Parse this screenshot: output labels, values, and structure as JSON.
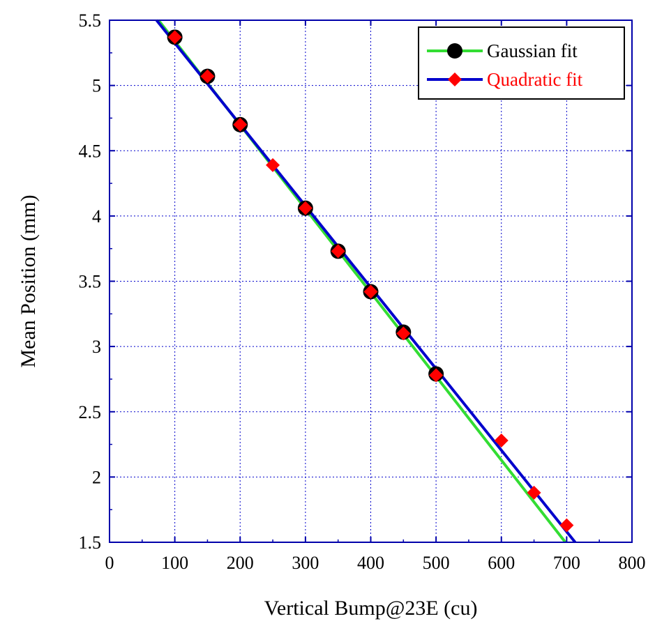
{
  "chart_data": {
    "type": "scatter",
    "title": "",
    "xlabel": "Vertical Bump@23E (cu)",
    "ylabel": "Mean Position (mm)",
    "xlim": [
      0,
      800
    ],
    "ylim": [
      1.5,
      5.5
    ],
    "x_ticks": [
      "0",
      "100",
      "200",
      "300",
      "400",
      "500",
      "600",
      "700",
      "800"
    ],
    "y_ticks": [
      "1.5",
      "2",
      "2.5",
      "3",
      "3.5",
      "4",
      "4.5",
      "5",
      "5.5"
    ],
    "grid": true,
    "legend_position": "top-right",
    "series": [
      {
        "name": "Gaussian fit",
        "color": "#000000",
        "line_color": "#33dd33",
        "marker": "circle",
        "x": [
          100,
          150,
          200,
          300,
          350,
          400,
          450,
          500
        ],
        "y": [
          5.37,
          5.07,
          4.7,
          4.06,
          3.73,
          3.42,
          3.11,
          2.79
        ],
        "fit_line": {
          "x": [
            75,
            698
          ],
          "y": [
            5.5,
            1.5
          ]
        }
      },
      {
        "name": "Quadratic fit",
        "color": "#ff0000",
        "line_color": "#0000cc",
        "marker": "diamond",
        "x": [
          100,
          150,
          200,
          250,
          300,
          350,
          400,
          450,
          500,
          600,
          650,
          700
        ],
        "y": [
          5.37,
          5.07,
          4.7,
          4.39,
          4.06,
          3.73,
          3.42,
          3.1,
          2.78,
          2.28,
          1.88,
          1.63
        ],
        "fit_line": {
          "x": [
            72,
            713
          ],
          "y": [
            5.5,
            1.5
          ]
        }
      }
    ]
  }
}
